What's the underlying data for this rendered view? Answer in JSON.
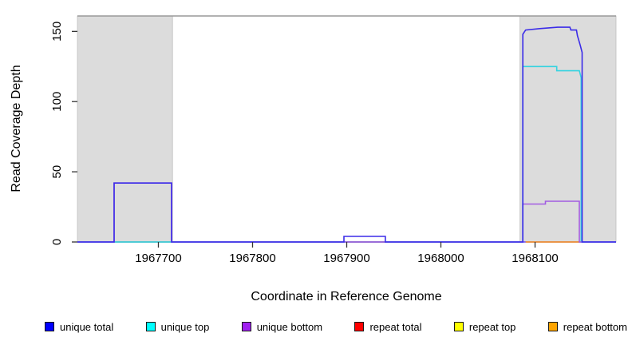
{
  "figure": {
    "xlabel": "Coordinate in Reference Genome",
    "ylabel": "Read Coverage Depth"
  },
  "legend": {
    "items": [
      {
        "label": "unique total",
        "color": "#0000ff"
      },
      {
        "label": "unique top",
        "color": "#00ffff"
      },
      {
        "label": "unique bottom",
        "color": "#a020f0"
      },
      {
        "label": "repeat total",
        "color": "#ff0000"
      },
      {
        "label": "repeat top",
        "color": "#ffff00"
      },
      {
        "label": "repeat bottom",
        "color": "#ffa500"
      }
    ]
  },
  "chart_data": {
    "type": "line",
    "title": "",
    "xlabel": "Coordinate in Reference Genome",
    "ylabel": "Read Coverage Depth",
    "xlim": [
      1967614,
      1968186
    ],
    "ylim": [
      0,
      161
    ],
    "x_ticks": [
      1967700,
      1967800,
      1967900,
      1968000,
      1968100
    ],
    "y_ticks": [
      0,
      50,
      100,
      150
    ],
    "grid": false,
    "legend_position": "bottom",
    "baseline_color": "#6a48ee",
    "top_border_color": "#999999",
    "shaded_regions": [
      {
        "x1": 1967614,
        "x2": 1967715,
        "fill": "#dcdcdc",
        "stroke": "#b8b8b8"
      },
      {
        "x1": 1968084,
        "x2": 1968186,
        "fill": "#dcdcdc",
        "stroke": "#b8b8b8"
      }
    ],
    "series": [
      {
        "name": "repeat total",
        "color": "#ff0000",
        "draw_color": "#e83030",
        "points": [
          [
            1967899,
            0
          ],
          [
            1967941,
            0
          ]
        ]
      },
      {
        "name": "repeat top",
        "color": "#ffff00",
        "draw_color": "#90c97f",
        "points": [
          [
            1967653,
            0
          ],
          [
            1967714,
            0
          ]
        ]
      },
      {
        "name": "repeat bottom",
        "color": "#ffa500",
        "draw_color": "#ff9414",
        "points": [
          [
            1968090,
            0
          ],
          [
            1968147,
            0
          ]
        ]
      },
      {
        "name": "unique top",
        "color": "#00ffff",
        "draw_color": "#35d3e0",
        "points": [
          [
            1967614,
            0
          ],
          [
            1968087,
            0
          ],
          [
            1968087,
            125
          ],
          [
            1968123,
            125
          ],
          [
            1968123,
            122
          ],
          [
            1968147,
            122
          ],
          [
            1968149,
            117
          ],
          [
            1968149,
            0
          ],
          [
            1968186,
            0
          ]
        ]
      },
      {
        "name": "unique bottom",
        "color": "#a020f0",
        "draw_color": "#a25de2",
        "points": [
          [
            1967614,
            0
          ],
          [
            1967653,
            0
          ],
          [
            1967653,
            42
          ],
          [
            1967714,
            42
          ],
          [
            1967714,
            0
          ],
          [
            1968087,
            0
          ],
          [
            1968087,
            27
          ],
          [
            1968111,
            27
          ],
          [
            1968111,
            29
          ],
          [
            1968147,
            29
          ],
          [
            1968147,
            0
          ],
          [
            1968186,
            0
          ]
        ]
      },
      {
        "name": "unique total",
        "color": "#0000ff",
        "draw_color": "#3b2ce8",
        "points": [
          [
            1967614,
            0
          ],
          [
            1967653,
            0
          ],
          [
            1967653,
            42
          ],
          [
            1967714,
            42
          ],
          [
            1967714,
            0
          ],
          [
            1967897,
            0
          ],
          [
            1967897,
            4
          ],
          [
            1967941,
            4
          ],
          [
            1967941,
            0
          ],
          [
            1968087,
            0
          ],
          [
            1968087,
            148
          ],
          [
            1968090,
            151
          ],
          [
            1968105,
            152
          ],
          [
            1968124,
            153
          ],
          [
            1968137,
            153
          ],
          [
            1968138,
            151
          ],
          [
            1968144,
            151
          ],
          [
            1968145,
            147
          ],
          [
            1968148,
            140
          ],
          [
            1968150,
            135
          ],
          [
            1968150,
            0
          ],
          [
            1968186,
            0
          ]
        ]
      }
    ]
  }
}
